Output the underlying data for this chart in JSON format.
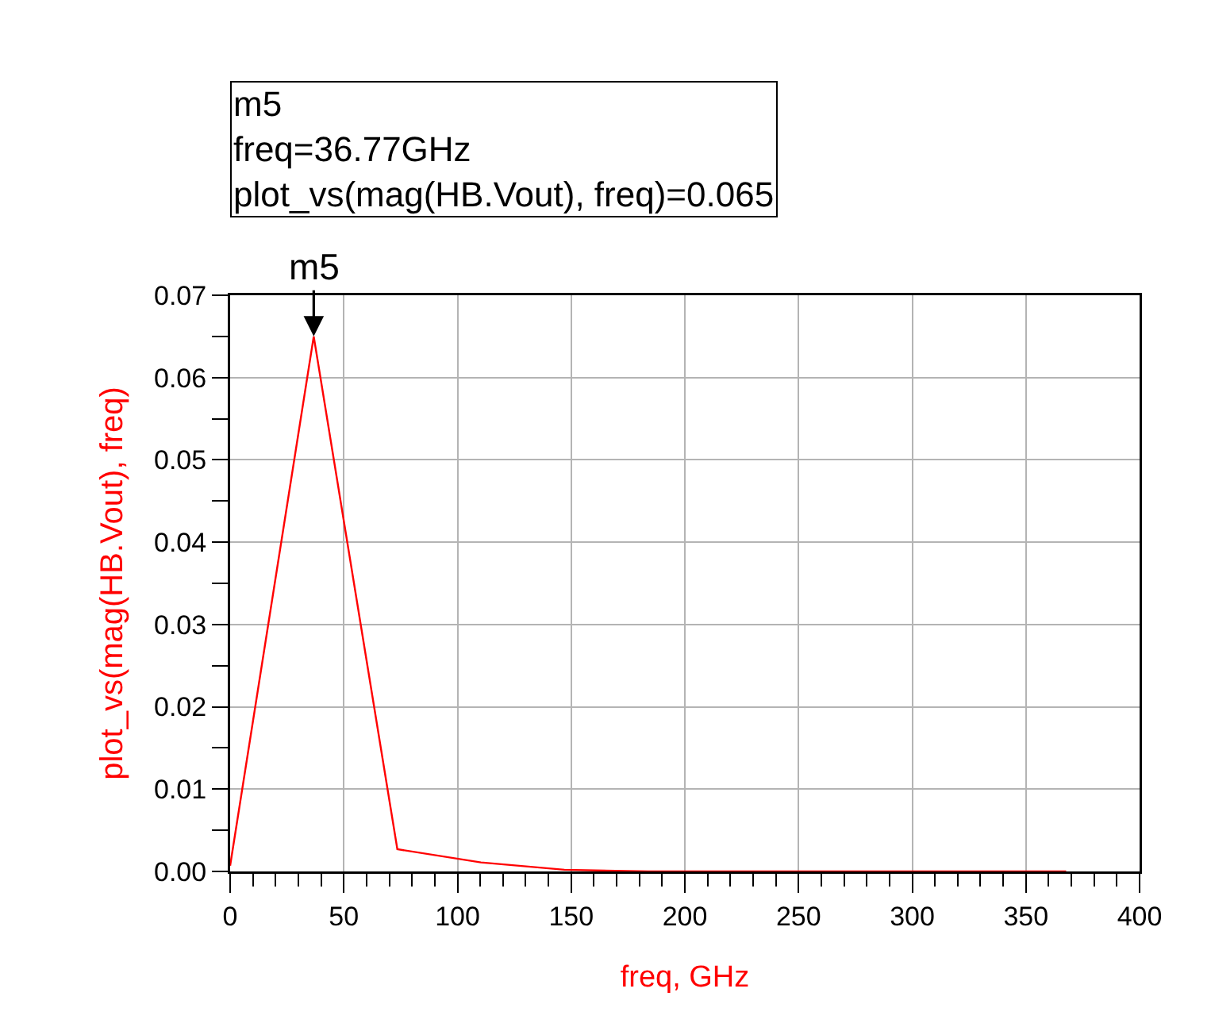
{
  "chart_data": {
    "type": "line",
    "x": [
      0,
      36.77,
      73.54,
      110.31,
      147.08,
      183.85,
      220.62,
      257.39,
      294.16,
      330.93,
      367.7
    ],
    "series": [
      {
        "color": "#ff0000",
        "values": [
          0.0007,
          0.065,
          0.0027,
          0.0011,
          0.0002,
          0,
          0,
          0,
          0,
          0,
          0
        ]
      }
    ],
    "xlabel": "freq, GHz",
    "ylabel": "plot_vs(mag(HB.Vout), freq)",
    "xlim": [
      0,
      400
    ],
    "xticks": [
      0,
      50,
      100,
      150,
      200,
      250,
      300,
      350,
      400
    ],
    "ylim": [
      0,
      0.07
    ],
    "yticks": [
      {
        "value": 0,
        "label": "0.00"
      },
      0.01,
      0.02,
      0.03,
      0.04,
      0.05,
      0.06,
      0.07
    ],
    "grid": true,
    "marker": "none",
    "line_style": "solid",
    "annotations": [
      {
        "text": "m5",
        "x": 36.77,
        "y": 0.065
      },
      "m5\nfreq=36.77GHz\nplot_vs(mag(HB.Vout), freq)=0.065"
    ]
  }
}
